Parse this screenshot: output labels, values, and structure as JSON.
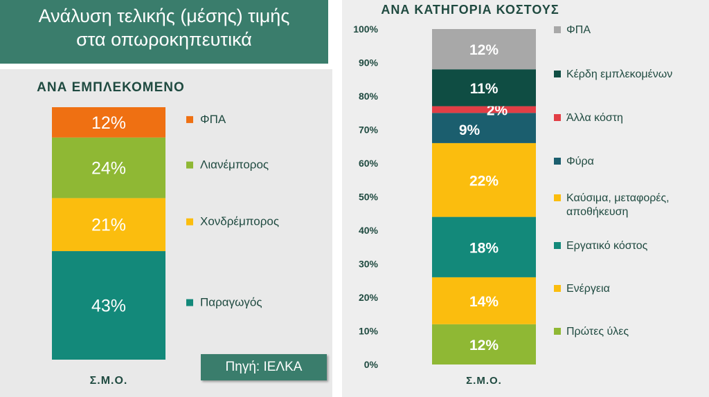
{
  "title": {
    "line1": "Ανάλυση τελικής (μέσης) τιμής",
    "line2": "στα οπωροκηπευτικά"
  },
  "source": "Πηγή: ΙΕΛΚΑ",
  "chart_data": [
    {
      "type": "bar",
      "stacked": true,
      "title": "ΑΝΑ ΕΜΠΛΕΚΟΜΕΝΟ",
      "categories": [
        "Σ.Μ.Ο."
      ],
      "series": [
        {
          "name": "Παραγωγός",
          "values": [
            43
          ],
          "label": "43%",
          "color": "#13897a"
        },
        {
          "name": "Χονδρέμπορος",
          "values": [
            21
          ],
          "label": "21%",
          "color": "#fbbd0e"
        },
        {
          "name": "Λιανέμπορος",
          "values": [
            24
          ],
          "label": "24%",
          "color": "#8fb834"
        },
        {
          "name": "ΦΠΑ",
          "values": [
            12
          ],
          "label": "12%",
          "color": "#ef7012"
        }
      ],
      "legend": "right",
      "ylim": [
        0,
        100
      ]
    },
    {
      "type": "bar",
      "stacked": true,
      "title": "ΑΝΑ ΚΑΤΗΓΟΡΙΑ ΚΟΣΤΟΥΣ",
      "categories": [
        "Σ.Μ.Ο."
      ],
      "series": [
        {
          "name": "Πρώτες ύλες",
          "values": [
            12
          ],
          "label": "12%",
          "color": "#8fb834"
        },
        {
          "name": "Ενέργεια",
          "values": [
            14
          ],
          "label": "14%",
          "color": "#fbbd0e"
        },
        {
          "name": "Εργατικό κόστος",
          "values": [
            18
          ],
          "label": "18%",
          "color": "#13897a"
        },
        {
          "name": "Καύσιμα, μεταφορές, αποθήκευση",
          "legend_lines": [
            "Καύσιμα, μεταφορές,",
            "αποθήκευση"
          ],
          "values": [
            22
          ],
          "label": "22%",
          "color": "#fbbd0e"
        },
        {
          "name": "Φύρα",
          "values": [
            9
          ],
          "label": "9%",
          "color": "#1b5e6e"
        },
        {
          "name": "Άλλα κόστη",
          "values": [
            2
          ],
          "label": "2%",
          "color": "#e23e45"
        },
        {
          "name": "Κέρδη εμπλεκομένων",
          "values": [
            11
          ],
          "label": "11%",
          "color": "#0f4d43"
        },
        {
          "name": "ΦΠΑ",
          "values": [
            12
          ],
          "label": "12%",
          "color": "#a8a8a8"
        }
      ],
      "yticks": [
        "0%",
        "10%",
        "20%",
        "30%",
        "40%",
        "50%",
        "60%",
        "70%",
        "80%",
        "90%",
        "100%"
      ],
      "legend": "right",
      "ylim": [
        0,
        100
      ]
    }
  ]
}
